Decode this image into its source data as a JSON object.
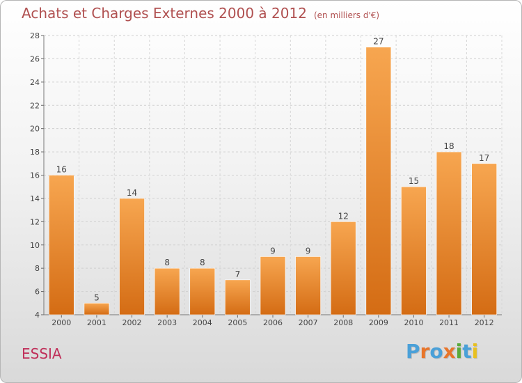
{
  "chart_title": "Achats et Charges Externes 2000 à 2012",
  "chart_unit": "(en milliers d'€)",
  "commune": "ESSIA",
  "brand": {
    "letters": [
      "P",
      "r",
      "o",
      "x",
      "i",
      "t",
      "i"
    ],
    "colors": [
      "#4aa0d8",
      "#e8752a",
      "#4aa0d8",
      "#e8752a",
      "#5aaa3a",
      "#4aa0d8",
      "#e8c020"
    ]
  },
  "chart_data": {
    "type": "bar",
    "title": "Achats et Charges Externes 2000 à 2012",
    "categories": [
      "2000",
      "2001",
      "2002",
      "2003",
      "2004",
      "2005",
      "2006",
      "2007",
      "2008",
      "2009",
      "2010",
      "2011",
      "2012"
    ],
    "values": [
      16,
      5,
      14,
      8,
      8,
      7,
      9,
      9,
      12,
      27,
      15,
      18,
      17
    ],
    "ylim": [
      4,
      28
    ],
    "yticks": [
      4,
      6,
      8,
      10,
      12,
      14,
      16,
      18,
      20,
      22,
      24,
      26,
      28
    ],
    "grid": true,
    "bar_color": "#f0a050"
  }
}
